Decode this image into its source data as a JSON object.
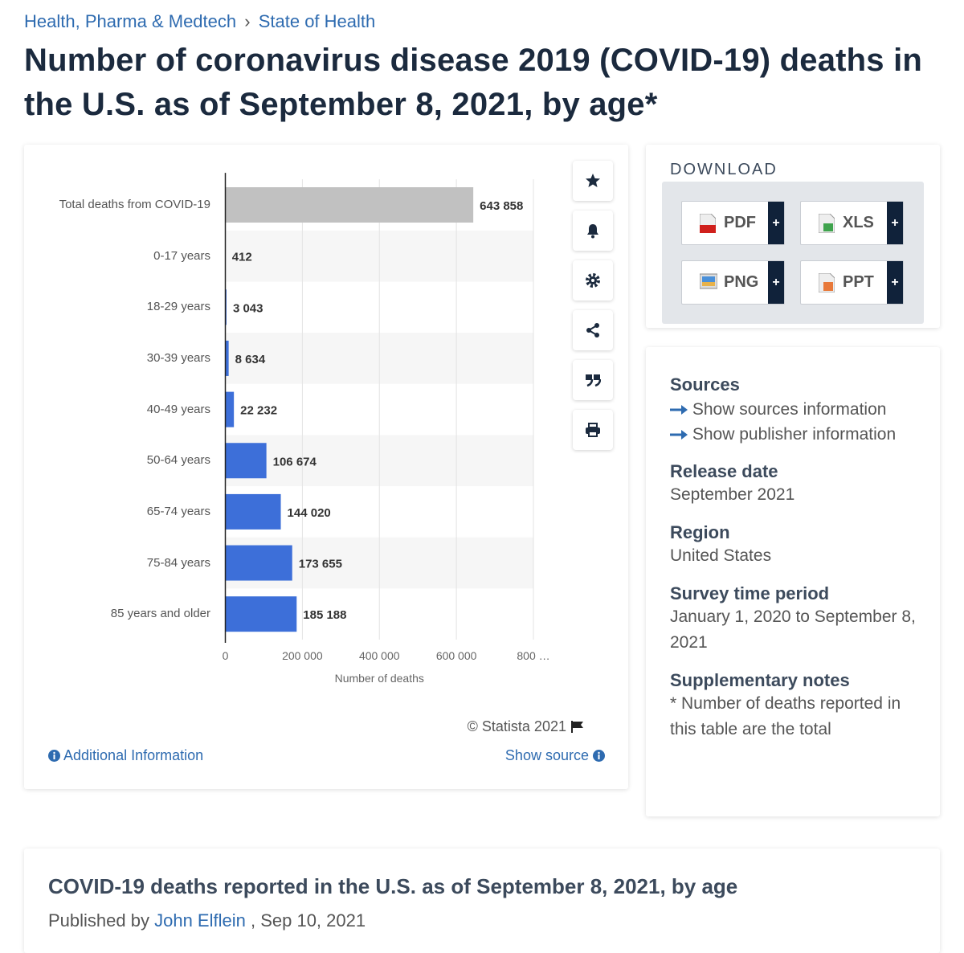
{
  "breadcrumb": {
    "items": [
      "Health, Pharma & Medtech",
      "State of Health"
    ],
    "separator": "›"
  },
  "title": "Number of coronavirus disease 2019 (COVID-19) deaths in the U.S. as of September 8, 2021, by age*",
  "chart_data": {
    "type": "bar",
    "orientation": "horizontal",
    "categories": [
      "Total deaths from COVID-19",
      "0-17 years",
      "18-29 years",
      "30-39 years",
      "40-49 years",
      "50-64 years",
      "65-74 years",
      "75-84 years",
      "85 years and older"
    ],
    "values": [
      643858,
      412,
      3043,
      8634,
      22232,
      106674,
      144020,
      173655,
      185188
    ],
    "value_labels": [
      "643 858",
      "412",
      "3 043",
      "8 634",
      "22 232",
      "106 674",
      "144 020",
      "173 655",
      "185 188"
    ],
    "colors": [
      "#c1c1c1",
      "#3d6fd9",
      "#3d6fd9",
      "#3d6fd9",
      "#3d6fd9",
      "#3d6fd9",
      "#3d6fd9",
      "#3d6fd9",
      "#3d6fd9"
    ],
    "xlim": [
      0,
      800000
    ],
    "xticks": [
      0,
      {
        "value": 200000,
        "label": "200 000"
      },
      {
        "value": 400000,
        "label": "400 000"
      },
      {
        "value": 600000,
        "label": "600 000"
      },
      {
        "value": 800000,
        "label": "800 …"
      }
    ],
    "xlabel": "Number of deaths",
    "grid": true
  },
  "chart_footer": {
    "copyright": "© Statista 2021",
    "additional_info": "Additional Information",
    "show_source": "Show source"
  },
  "download": {
    "heading": "DOWNLOAD",
    "formats": [
      "PDF",
      "XLS",
      "PNG",
      "PPT"
    ],
    "add_label": "+"
  },
  "details": {
    "sources": {
      "heading": "Sources",
      "links": [
        "Show sources information",
        "Show publisher information"
      ]
    },
    "items": [
      {
        "heading": "Release date",
        "text": "September 2021"
      },
      {
        "heading": "Region",
        "text": "United States"
      },
      {
        "heading": "Survey time period",
        "text": "January 1, 2020 to September 8, 2021"
      },
      {
        "heading": "Supplementary notes",
        "text": "* Number of deaths reported in this table are the total"
      }
    ]
  },
  "publication": {
    "title": "COVID-19 deaths reported in the U.S. as of September 8, 2021, by age",
    "published_by": "Published by",
    "author": "John Elflein",
    "date": ", Sep 10, 2021"
  }
}
